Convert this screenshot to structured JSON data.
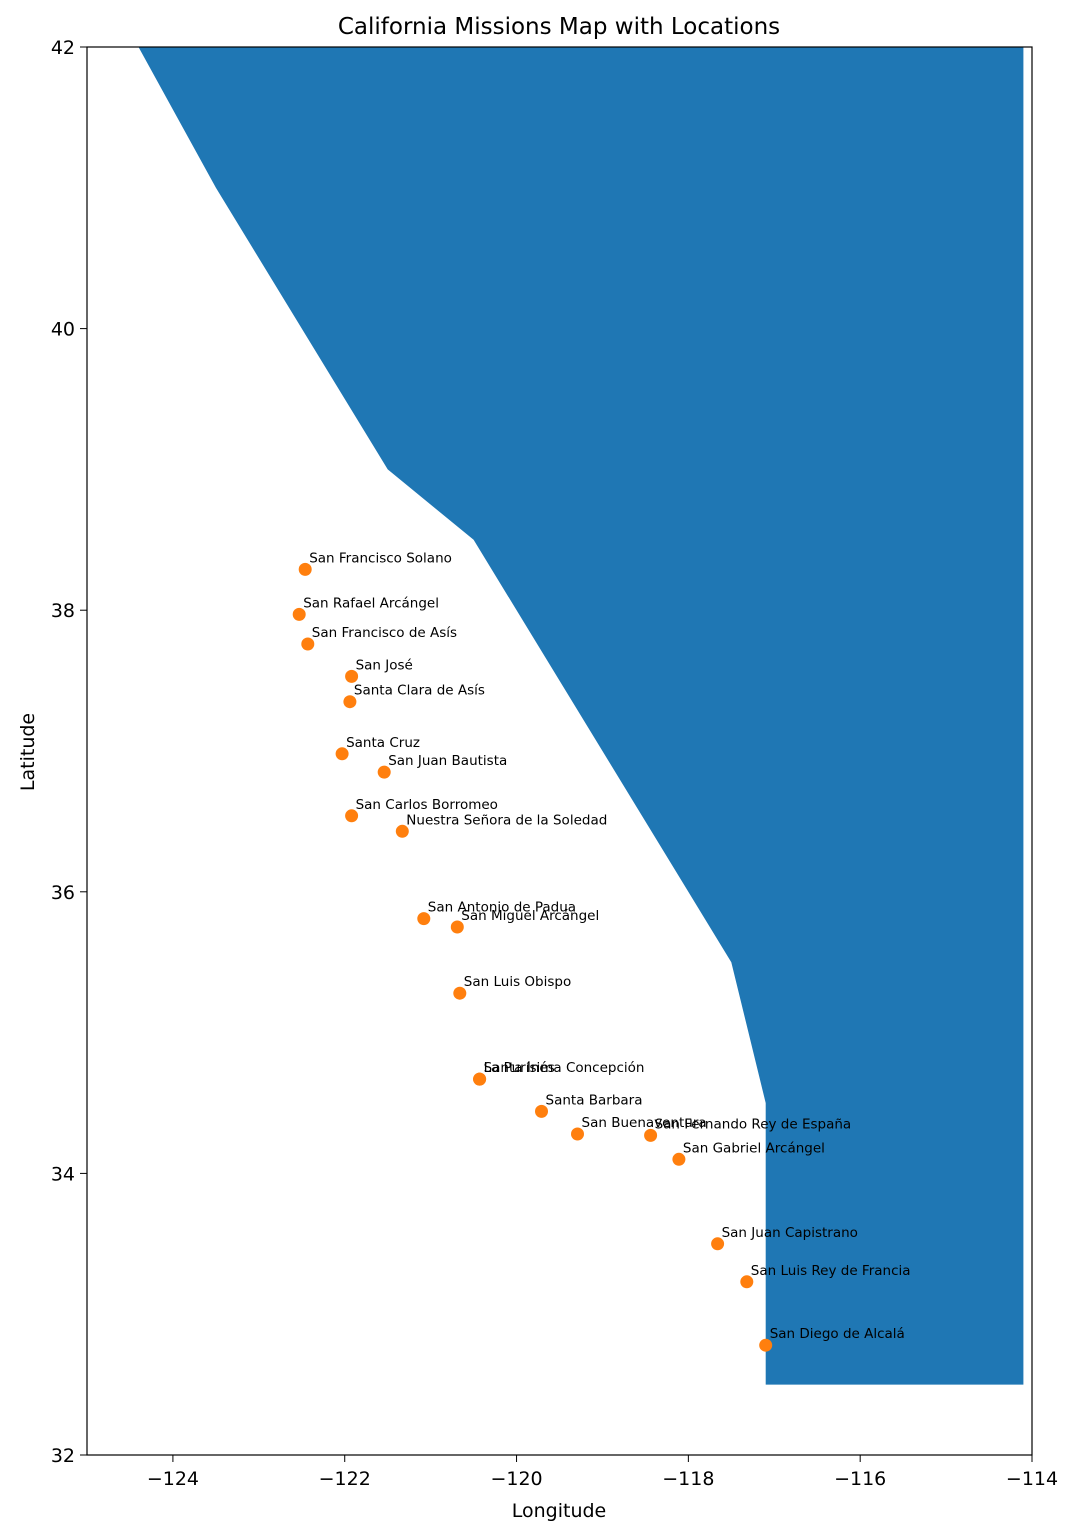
{
  "chart_data": {
    "type": "scatter",
    "title": "California Missions Map with Locations",
    "xlabel": "Longitude",
    "ylabel": "Latitude",
    "xlim": [
      -125,
      -114
    ],
    "ylim": [
      32,
      42
    ],
    "xticks": [
      -124,
      -122,
      -120,
      -118,
      -116,
      -114
    ],
    "yticks": [
      32,
      34,
      36,
      38,
      40,
      42
    ],
    "xtick_labels": [
      "−124",
      "−122",
      "−120",
      "−118",
      "−116",
      "−114"
    ],
    "ytick_labels": [
      "32",
      "34",
      "36",
      "38",
      "40",
      "42"
    ],
    "grid": false,
    "colors": {
      "polygon": "#1f77b4",
      "points": "#ff7f0e"
    },
    "polygon": {
      "x": [
        -124.4,
        -123.5,
        -121.5,
        -120.5,
        -117.5,
        -117.1,
        -117.1,
        -114.1,
        -114.1
      ],
      "y": [
        42.0,
        41.0,
        39.0,
        38.5,
        35.5,
        34.5,
        32.5,
        32.5,
        42.0
      ]
    },
    "series": [
      {
        "points": [
          {
            "name": "San Diego de Alcalá",
            "x": -117.1,
            "y": 32.78
          },
          {
            "name": "San Luis Rey de Francia",
            "x": -117.32,
            "y": 33.23
          },
          {
            "name": "San Juan Capistrano",
            "x": -117.66,
            "y": 33.5
          },
          {
            "name": "San Gabriel Arcángel",
            "x": -118.11,
            "y": 34.1
          },
          {
            "name": "San Fernando Rey de España",
            "x": -118.44,
            "y": 34.27
          },
          {
            "name": "San Buenaventura",
            "x": -119.29,
            "y": 34.28
          },
          {
            "name": "Santa Barbara",
            "x": -119.71,
            "y": 34.44
          },
          {
            "name": "Santa Inés",
            "x": -120.43,
            "y": 34.67
          },
          {
            "name": "La Purísima Concepción",
            "x": -120.43,
            "y": 34.67
          },
          {
            "name": "San Luis Obispo",
            "x": -120.66,
            "y": 35.28
          },
          {
            "name": "San Miguel Arcángel",
            "x": -120.69,
            "y": 35.75
          },
          {
            "name": "San Antonio de Padua",
            "x": -121.08,
            "y": 35.81
          },
          {
            "name": "Nuestra Señora de la Soledad",
            "x": -121.33,
            "y": 36.43
          },
          {
            "name": "San Carlos Borromeo",
            "x": -121.92,
            "y": 36.54
          },
          {
            "name": "San Juan Bautista",
            "x": -121.54,
            "y": 36.85
          },
          {
            "name": "Santa Cruz",
            "x": -122.03,
            "y": 36.98
          },
          {
            "name": "Santa Clara de Asís",
            "x": -121.94,
            "y": 37.35
          },
          {
            "name": "San José",
            "x": -121.92,
            "y": 37.53
          },
          {
            "name": "San Francisco de Asís",
            "x": -122.43,
            "y": 37.76
          },
          {
            "name": "San Rafael Arcángel",
            "x": -122.53,
            "y": 37.97
          },
          {
            "name": "San Francisco Solano",
            "x": -122.46,
            "y": 38.29
          }
        ]
      }
    ]
  }
}
